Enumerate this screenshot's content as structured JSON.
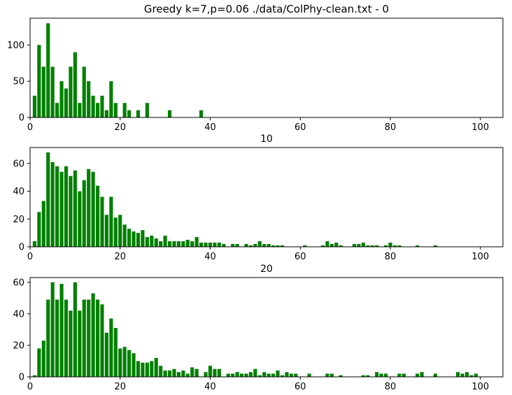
{
  "bar_color": "#008000",
  "chart_data": [
    {
      "type": "bar",
      "title": "Greedy k=7,p=0.06 ./data/ColPhy-clean.txt - 0",
      "xlabel": "",
      "ylabel": "",
      "xlim": [
        0,
        105
      ],
      "ylim": [
        0,
        137
      ],
      "xticks": [
        0,
        20,
        40,
        60,
        80,
        100
      ],
      "yticks": [
        0,
        50,
        100
      ],
      "x": [
        1,
        2,
        3,
        4,
        5,
        6,
        7,
        8,
        9,
        10,
        11,
        12,
        13,
        14,
        15,
        16,
        17,
        18,
        19,
        20,
        21,
        22,
        23,
        24,
        25,
        26,
        27,
        28,
        29,
        30,
        31,
        32,
        33,
        34,
        35,
        36,
        37,
        38,
        39,
        40,
        41,
        42,
        43,
        44,
        45,
        46,
        47,
        48,
        49,
        50,
        51,
        52,
        53,
        54,
        55,
        56,
        57,
        58,
        59,
        60,
        61,
        62,
        63,
        64,
        65,
        66,
        67,
        68,
        69,
        70,
        71,
        72,
        73,
        74,
        75,
        76,
        77,
        78,
        79,
        80,
        81,
        82,
        83,
        84,
        85,
        86,
        87,
        88,
        89,
        90,
        91,
        92,
        93,
        94,
        95,
        96,
        97,
        98,
        99,
        100
      ],
      "values": [
        30,
        100,
        70,
        130,
        70,
        20,
        50,
        40,
        70,
        90,
        20,
        70,
        50,
        30,
        20,
        30,
        10,
        50,
        20,
        0,
        20,
        10,
        0,
        10,
        0,
        20,
        0,
        0,
        0,
        0,
        10,
        0,
        0,
        0,
        0,
        0,
        0,
        10,
        0,
        0,
        0,
        0,
        0,
        0,
        0,
        0,
        0,
        0,
        0,
        0,
        0,
        0,
        0,
        0,
        0,
        0,
        0,
        0,
        0,
        0,
        0,
        0,
        0,
        0,
        0,
        0,
        0,
        0,
        0,
        0,
        0,
        0,
        0,
        0,
        0,
        0,
        0,
        0,
        0,
        0,
        0,
        0,
        0,
        0,
        0,
        0,
        0,
        0,
        0,
        0,
        0,
        0,
        0,
        0,
        0,
        0,
        0,
        0,
        0,
        0
      ]
    },
    {
      "type": "bar",
      "title": "10",
      "xlabel": "",
      "ylabel": "",
      "xlim": [
        0,
        105
      ],
      "ylim": [
        0,
        71.5
      ],
      "xticks": [
        0,
        20,
        40,
        60,
        80,
        100
      ],
      "yticks": [
        0,
        20,
        40,
        60
      ],
      "x": [
        1,
        2,
        3,
        4,
        5,
        6,
        7,
        8,
        9,
        10,
        11,
        12,
        13,
        14,
        15,
        16,
        17,
        18,
        19,
        20,
        21,
        22,
        23,
        24,
        25,
        26,
        27,
        28,
        29,
        30,
        31,
        32,
        33,
        34,
        35,
        36,
        37,
        38,
        39,
        40,
        41,
        42,
        43,
        44,
        45,
        46,
        47,
        48,
        49,
        50,
        51,
        52,
        53,
        54,
        55,
        56,
        57,
        58,
        59,
        60,
        61,
        62,
        63,
        64,
        65,
        66,
        67,
        68,
        69,
        70,
        71,
        72,
        73,
        74,
        75,
        76,
        77,
        78,
        79,
        80,
        81,
        82,
        83,
        84,
        85,
        86,
        87,
        88,
        89,
        90,
        91,
        92,
        93,
        94,
        95,
        96,
        97,
        98,
        99,
        100
      ],
      "values": [
        4,
        25,
        33,
        68,
        61,
        58,
        54,
        58,
        51,
        55,
        40,
        48,
        56,
        54,
        44,
        36,
        23,
        36,
        21,
        23,
        16,
        13,
        11,
        10,
        12,
        7,
        8,
        6,
        4,
        8,
        4,
        4,
        4,
        4,
        5,
        4,
        7,
        3,
        3,
        3,
        3,
        3,
        2,
        0,
        2,
        2,
        0,
        2,
        1,
        2,
        4,
        2,
        2,
        1,
        1,
        1,
        0,
        0,
        0,
        0,
        1,
        0,
        0,
        0,
        1,
        4,
        2,
        3,
        1,
        0,
        0,
        2,
        2,
        3,
        1,
        1,
        1,
        0,
        1,
        3,
        1,
        1,
        0,
        0,
        0,
        1,
        0,
        0,
        0,
        1,
        0,
        0,
        0,
        0,
        0,
        0,
        0,
        0,
        0,
        0
      ]
    },
    {
      "type": "bar",
      "title": "20",
      "xlabel": "",
      "ylabel": "",
      "xlim": [
        0,
        105
      ],
      "ylim": [
        0,
        63
      ],
      "xticks": [
        0,
        20,
        40,
        60,
        80,
        100
      ],
      "yticks": [
        0,
        20,
        40,
        60
      ],
      "x": [
        1,
        2,
        3,
        4,
        5,
        6,
        7,
        8,
        9,
        10,
        11,
        12,
        13,
        14,
        15,
        16,
        17,
        18,
        19,
        20,
        21,
        22,
        23,
        24,
        25,
        26,
        27,
        28,
        29,
        30,
        31,
        32,
        33,
        34,
        35,
        36,
        37,
        38,
        39,
        40,
        41,
        42,
        43,
        44,
        45,
        46,
        47,
        48,
        49,
        50,
        51,
        52,
        53,
        54,
        55,
        56,
        57,
        58,
        59,
        60,
        61,
        62,
        63,
        64,
        65,
        66,
        67,
        68,
        69,
        70,
        71,
        72,
        73,
        74,
        75,
        76,
        77,
        78,
        79,
        80,
        81,
        82,
        83,
        84,
        85,
        86,
        87,
        88,
        89,
        90,
        91,
        92,
        93,
        94,
        95,
        96,
        97,
        98,
        99,
        100
      ],
      "values": [
        1,
        18,
        23,
        49,
        60,
        49,
        59,
        49,
        42,
        60,
        42,
        49,
        49,
        53,
        49,
        46,
        28,
        37,
        31,
        18,
        19,
        17,
        15,
        10,
        9,
        9,
        10,
        12,
        7,
        4,
        4,
        5,
        3,
        4,
        2,
        6,
        5,
        0,
        3,
        7,
        5,
        5,
        0,
        2,
        2,
        3,
        2,
        2,
        3,
        5,
        1,
        3,
        2,
        2,
        4,
        1,
        3,
        2,
        2,
        0,
        0,
        2,
        0,
        0,
        0,
        2,
        2,
        0,
        1,
        0,
        0,
        0,
        0,
        1,
        1,
        0,
        3,
        2,
        2,
        0,
        0,
        2,
        2,
        0,
        0,
        2,
        3,
        0,
        0,
        2,
        0,
        0,
        0,
        0,
        3,
        2,
        3,
        1,
        2,
        0
      ]
    }
  ]
}
